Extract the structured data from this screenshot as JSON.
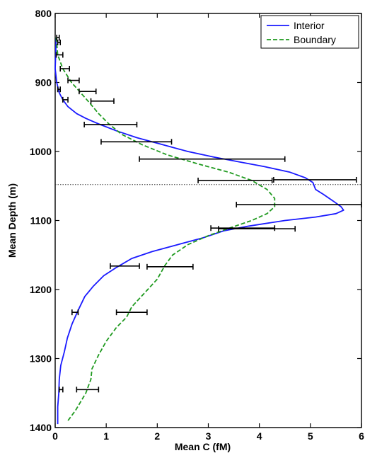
{
  "chart_data": {
    "type": "line",
    "xlabel": "Mean C  (fM)",
    "ylabel": "Mean Depth  (m)",
    "xlim": [
      0,
      6
    ],
    "ylim": [
      1400,
      800
    ],
    "y_reversed": true,
    "grid": false,
    "legend_position": "top-right",
    "x_ticks": [
      "0",
      "1",
      "2",
      "3",
      "4",
      "5",
      "6"
    ],
    "y_ticks": [
      "800",
      "900",
      "1000",
      "1100",
      "1200",
      "1300",
      "1400"
    ],
    "reference_line_depth": 1048,
    "series": [
      {
        "name": "Interior",
        "style": "solid",
        "color": "#1a1aff",
        "points": [
          [
            0.02,
            835
          ],
          [
            0.01,
            860
          ],
          [
            0.0,
            880
          ],
          [
            0.03,
            900
          ],
          [
            0.08,
            915
          ],
          [
            0.15,
            925
          ],
          [
            0.25,
            935
          ],
          [
            0.42,
            945
          ],
          [
            0.6,
            952
          ],
          [
            0.85,
            960
          ],
          [
            1.2,
            970
          ],
          [
            1.6,
            980
          ],
          [
            2.1,
            990
          ],
          [
            2.6,
            1000
          ],
          [
            3.1,
            1008
          ],
          [
            3.6,
            1015
          ],
          [
            4.1,
            1022
          ],
          [
            4.6,
            1030
          ],
          [
            4.9,
            1038
          ],
          [
            5.05,
            1045
          ],
          [
            5.1,
            1055
          ],
          [
            5.25,
            1062
          ],
          [
            5.45,
            1072
          ],
          [
            5.6,
            1080
          ],
          [
            5.65,
            1085
          ],
          [
            5.5,
            1090
          ],
          [
            5.1,
            1095
          ],
          [
            4.5,
            1100
          ],
          [
            3.8,
            1108
          ],
          [
            3.3,
            1115
          ],
          [
            2.9,
            1125
          ],
          [
            2.4,
            1135
          ],
          [
            1.9,
            1145
          ],
          [
            1.5,
            1155
          ],
          [
            1.2,
            1168
          ],
          [
            0.95,
            1180
          ],
          [
            0.75,
            1195
          ],
          [
            0.58,
            1210
          ],
          [
            0.45,
            1230
          ],
          [
            0.33,
            1250
          ],
          [
            0.24,
            1270
          ],
          [
            0.18,
            1290
          ],
          [
            0.11,
            1310
          ],
          [
            0.08,
            1330
          ],
          [
            0.07,
            1350
          ],
          [
            0.05,
            1370
          ],
          [
            0.05,
            1395
          ]
        ]
      },
      {
        "name": "Boundary",
        "style": "dashed",
        "color": "#1f9a1f",
        "points": [
          [
            0.02,
            835
          ],
          [
            0.05,
            860
          ],
          [
            0.15,
            880
          ],
          [
            0.32,
            900
          ],
          [
            0.5,
            915
          ],
          [
            0.68,
            930
          ],
          [
            0.85,
            945
          ],
          [
            1.05,
            960
          ],
          [
            1.3,
            975
          ],
          [
            1.7,
            990
          ],
          [
            2.2,
            1005
          ],
          [
            2.8,
            1018
          ],
          [
            3.4,
            1030
          ],
          [
            3.85,
            1042
          ],
          [
            4.15,
            1055
          ],
          [
            4.3,
            1068
          ],
          [
            4.3,
            1080
          ],
          [
            4.15,
            1090
          ],
          [
            3.85,
            1100
          ],
          [
            3.45,
            1110
          ],
          [
            3.0,
            1122
          ],
          [
            2.6,
            1135
          ],
          [
            2.3,
            1150
          ],
          [
            2.15,
            1165
          ],
          [
            2.0,
            1185
          ],
          [
            1.75,
            1205
          ],
          [
            1.5,
            1225
          ],
          [
            1.4,
            1240
          ],
          [
            1.2,
            1255
          ],
          [
            1.0,
            1275
          ],
          [
            0.85,
            1295
          ],
          [
            0.72,
            1315
          ],
          [
            0.7,
            1330
          ],
          [
            0.6,
            1350
          ],
          [
            0.4,
            1375
          ],
          [
            0.25,
            1390
          ]
        ]
      }
    ],
    "error_bars": [
      {
        "depth": 835,
        "x_low": 0.03,
        "x_high": 0.08
      },
      {
        "depth": 842,
        "x_low": 0.05,
        "x_high": 0.1
      },
      {
        "depth": 860,
        "x_low": 0.02,
        "x_high": 0.15
      },
      {
        "depth": 880,
        "x_low": 0.1,
        "x_high": 0.28
      },
      {
        "depth": 897,
        "x_low": 0.25,
        "x_high": 0.47
      },
      {
        "depth": 910,
        "x_low": 0.05,
        "x_high": 0.1
      },
      {
        "depth": 913,
        "x_low": 0.47,
        "x_high": 0.8
      },
      {
        "depth": 925,
        "x_low": 0.15,
        "x_high": 0.25
      },
      {
        "depth": 927,
        "x_low": 0.7,
        "x_high": 1.15
      },
      {
        "depth": 961,
        "x_low": 0.57,
        "x_high": 1.6
      },
      {
        "depth": 986,
        "x_low": 0.9,
        "x_high": 2.28
      },
      {
        "depth": 1011,
        "x_low": 1.65,
        "x_high": 4.5
      },
      {
        "depth": 1042,
        "x_low": 2.8,
        "x_high": 4.25
      },
      {
        "depth": 1041,
        "x_low": 4.28,
        "x_high": 5.9
      },
      {
        "depth": 1077,
        "x_low": 3.55,
        "x_high": 6.0
      },
      {
        "depth": 1111,
        "x_low": 3.05,
        "x_high": 4.3
      },
      {
        "depth": 1112,
        "x_low": 3.2,
        "x_high": 4.7
      },
      {
        "depth": 1166,
        "x_low": 1.08,
        "x_high": 1.65
      },
      {
        "depth": 1167,
        "x_low": 1.8,
        "x_high": 2.7
      },
      {
        "depth": 1233,
        "x_low": 0.33,
        "x_high": 0.45
      },
      {
        "depth": 1233,
        "x_low": 1.2,
        "x_high": 1.8
      },
      {
        "depth": 1345,
        "x_low": 0.08,
        "x_high": 0.15
      },
      {
        "depth": 1345,
        "x_low": 0.42,
        "x_high": 0.85
      }
    ]
  }
}
